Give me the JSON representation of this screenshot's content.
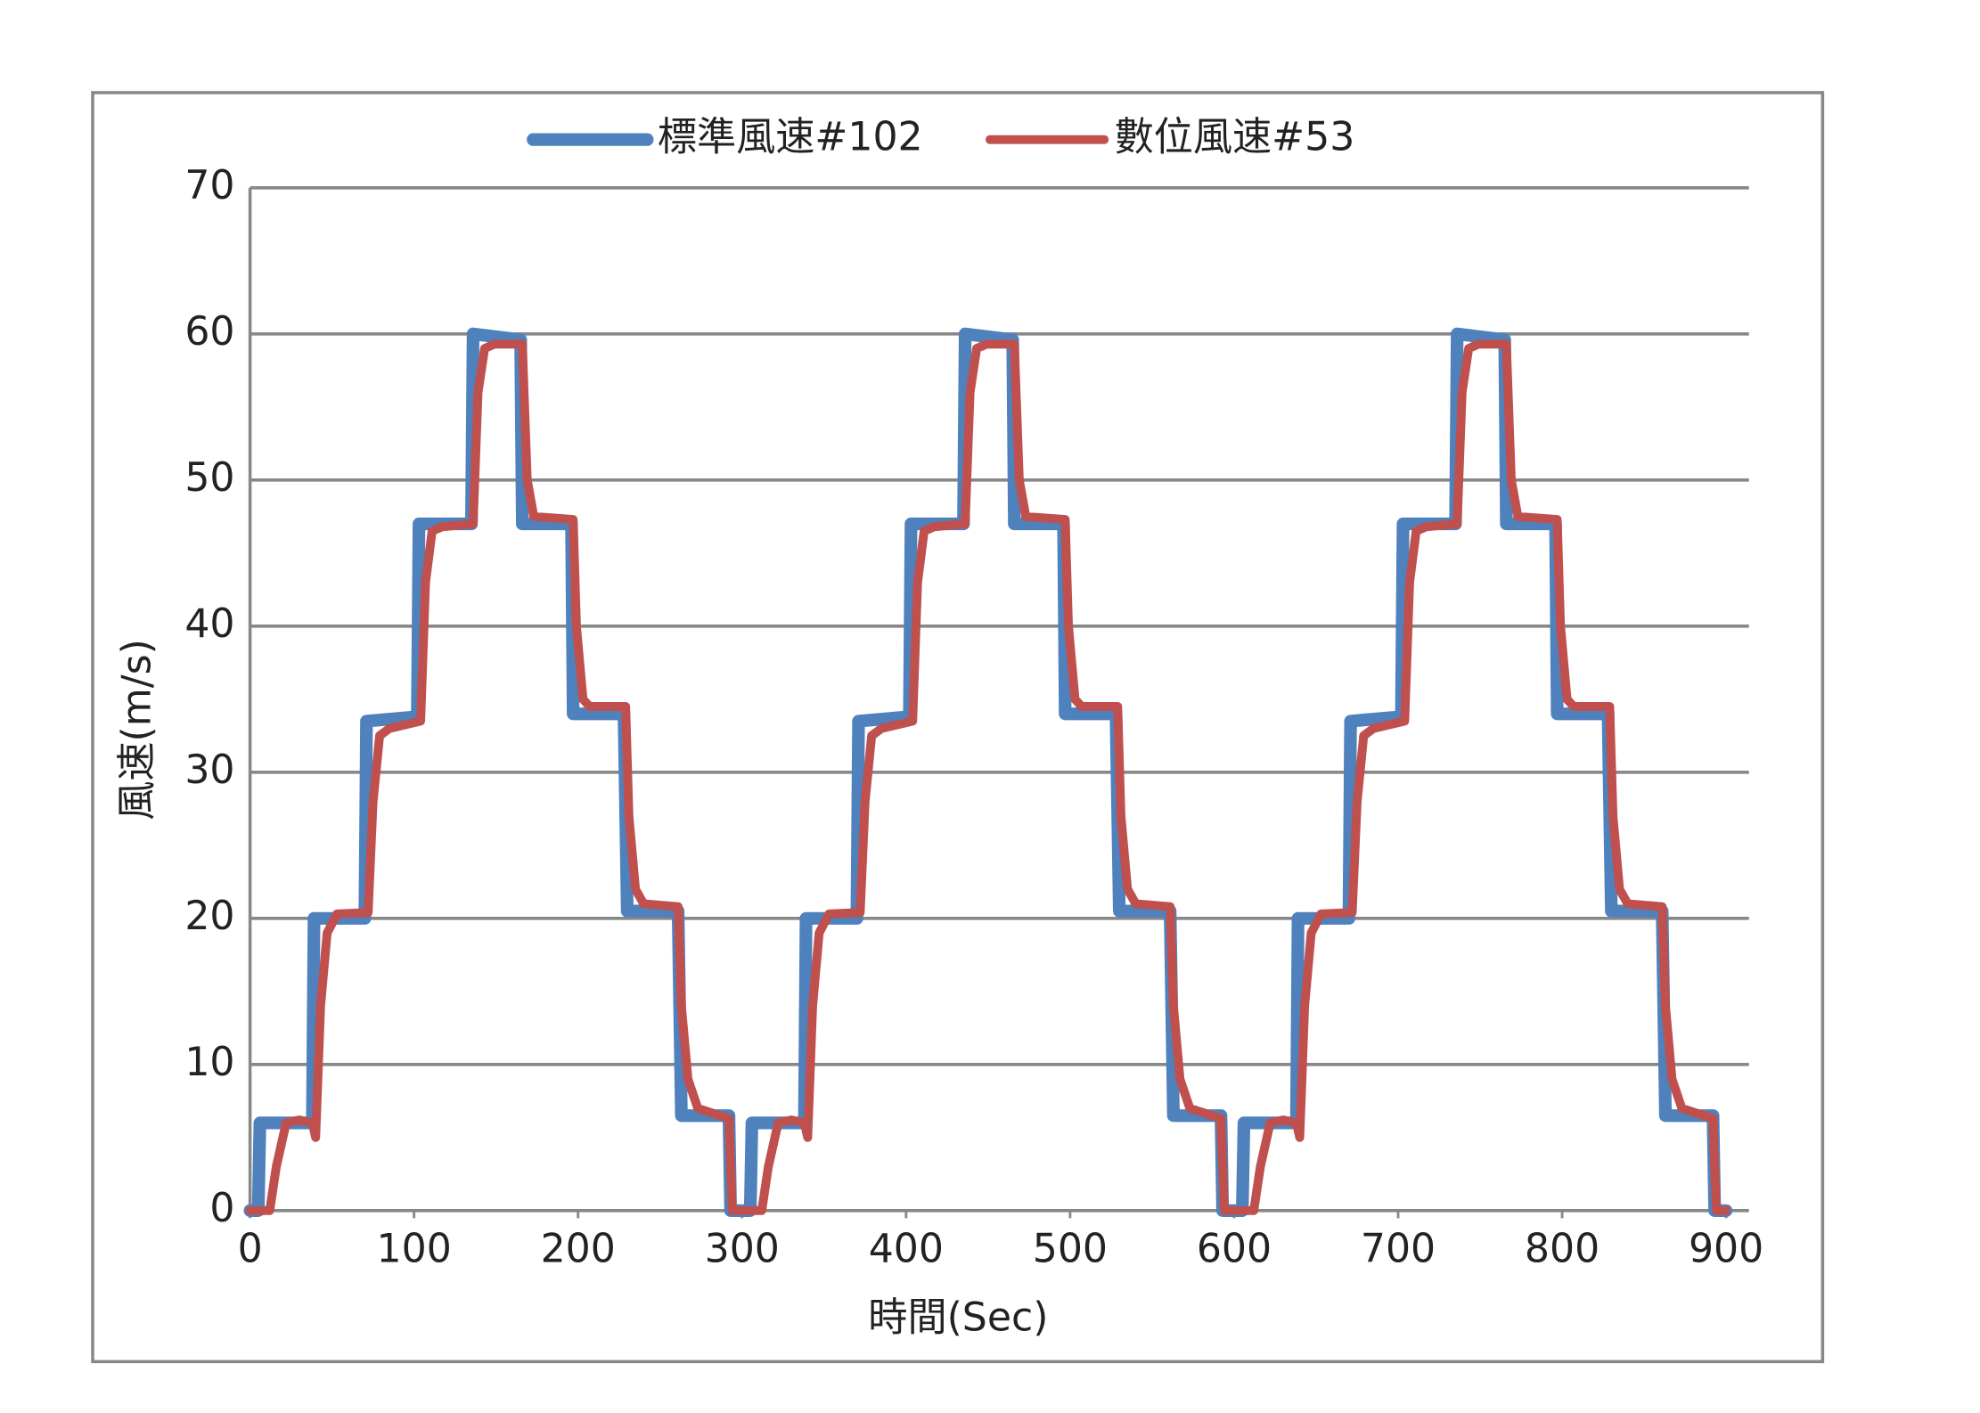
{
  "chart_data": {
    "type": "line",
    "x_label": "時間(Sec)",
    "y_label": "風速(m/s)",
    "xlim": [
      0,
      900
    ],
    "xticks": [
      0,
      100,
      200,
      300,
      400,
      500,
      600,
      700,
      800,
      900
    ],
    "ylim": [
      0,
      70
    ],
    "yticks": [
      0,
      10,
      20,
      30,
      40,
      50,
      60,
      70
    ],
    "grid": true,
    "legend": "top",
    "series": [
      {
        "name": "標準風速#102",
        "color": "#4f81bd",
        "x": [
          0,
          5,
          6,
          38,
          39,
          70,
          71,
          102,
          103,
          135,
          136,
          165,
          166,
          196,
          197,
          228,
          230,
          261,
          263,
          292,
          293,
          300,
          305,
          306,
          338,
          339,
          370,
          371,
          402,
          403,
          435,
          436,
          465,
          466,
          496,
          497,
          528,
          530,
          561,
          563,
          592,
          593,
          600,
          605,
          606,
          638,
          639,
          670,
          671,
          702,
          703,
          735,
          736,
          765,
          766,
          796,
          797,
          828,
          830,
          861,
          863,
          892,
          893,
          900
        ],
        "values": [
          0,
          0,
          6,
          6,
          20,
          20,
          33.5,
          33.8,
          47,
          47,
          60,
          59.6,
          47,
          47,
          34,
          34,
          20.5,
          20.5,
          6.5,
          6.5,
          0,
          0,
          0,
          6,
          6,
          20,
          20,
          33.5,
          33.8,
          47,
          47,
          60,
          59.6,
          47,
          47,
          34,
          34,
          20.5,
          20.5,
          6.5,
          6.5,
          0,
          0,
          0,
          6,
          6,
          20,
          20,
          33.5,
          33.8,
          47,
          47,
          60,
          59.6,
          47,
          47,
          34,
          34,
          20.5,
          20.5,
          6.5,
          6.5,
          0,
          0
        ]
      },
      {
        "name": "數位風速#53",
        "color": "#c0504d",
        "x": [
          0,
          12,
          16,
          22,
          30,
          38,
          40,
          43,
          47,
          53,
          72,
          75,
          79,
          85,
          104,
          107,
          111,
          117,
          136,
          139,
          143,
          149,
          166,
          169,
          173,
          197,
          199,
          203,
          207,
          229,
          231,
          235,
          240,
          261,
          263,
          267,
          273,
          292,
          294,
          300,
          312,
          316,
          322,
          330,
          338,
          340,
          343,
          347,
          353,
          372,
          375,
          379,
          385,
          404,
          407,
          411,
          417,
          436,
          439,
          443,
          449,
          466,
          469,
          473,
          497,
          499,
          503,
          507,
          529,
          531,
          535,
          540,
          561,
          563,
          567,
          573,
          592,
          594,
          600,
          612,
          616,
          622,
          630,
          638,
          640,
          643,
          647,
          653,
          672,
          675,
          679,
          685,
          704,
          707,
          711,
          717,
          736,
          739,
          743,
          749,
          766,
          769,
          773,
          797,
          799,
          803,
          807,
          829,
          831,
          835,
          840,
          861,
          863,
          867,
          873,
          892,
          894,
          900
        ],
        "values": [
          0,
          0,
          3,
          6,
          6.2,
          6,
          5,
          14,
          19,
          20.3,
          20.4,
          28,
          32.5,
          33,
          33.5,
          43,
          46.5,
          46.8,
          47,
          56,
          59,
          59.3,
          59.3,
          50,
          47.5,
          47.3,
          40,
          35,
          34.5,
          34.5,
          27,
          22,
          21,
          20.8,
          14,
          9,
          7,
          6.3,
          0,
          0,
          0,
          3,
          6,
          6.2,
          6,
          5,
          14,
          19,
          20.3,
          20.4,
          28,
          32.5,
          33,
          33.5,
          43,
          46.5,
          46.8,
          47,
          56,
          59,
          59.3,
          59.3,
          50,
          47.5,
          47.3,
          40,
          35,
          34.5,
          34.5,
          27,
          22,
          21,
          20.8,
          14,
          9,
          7,
          6.3,
          0,
          0,
          0,
          3,
          6,
          6.2,
          6,
          5,
          14,
          19,
          20.3,
          20.4,
          28,
          32.5,
          33,
          33.5,
          43,
          46.5,
          46.8,
          47,
          56,
          59,
          59.3,
          59.3,
          50,
          47.5,
          47.3,
          40,
          35,
          34.5,
          34.5,
          27,
          22,
          21,
          20.8,
          14,
          9,
          7,
          6.3,
          0,
          0
        ]
      }
    ]
  }
}
